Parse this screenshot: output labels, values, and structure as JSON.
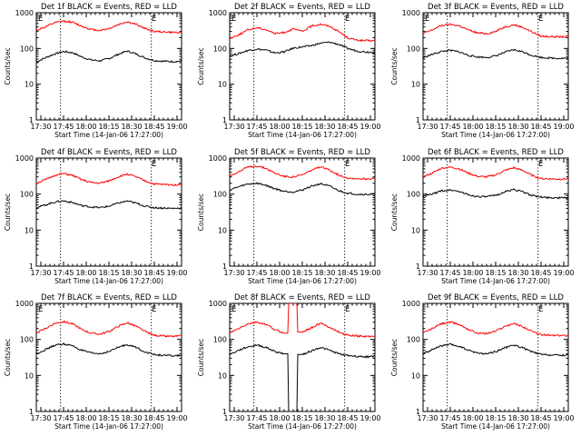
{
  "chart_data": [
    {
      "type": "line",
      "title": "Det 1f BLACK = Events, RED = LLD",
      "ylabel": "Counts/sec",
      "xlabel": "Start Time (14-Jan-06 17:27:00)",
      "x_ticks": [
        "17:30",
        "17:45",
        "18:00",
        "18:15",
        "18:30",
        "18:45",
        "19:00"
      ],
      "y_ticks": [
        "1",
        "10",
        "100",
        "1000"
      ],
      "ylim": [
        1,
        1000
      ],
      "y_scale": "log",
      "annotations": [
        "E",
        "E"
      ],
      "series": [
        {
          "color": "#000000",
          "values": [
            42,
            55,
            70,
            82,
            76,
            58,
            48,
            45,
            52,
            68,
            85,
            70,
            54,
            46,
            44,
            43,
            44
          ]
        },
        {
          "color": "#ff0000",
          "values": [
            320,
            400,
            520,
            580,
            540,
            420,
            340,
            320,
            360,
            460,
            560,
            470,
            360,
            300,
            290,
            280,
            285
          ]
        }
      ]
    },
    {
      "type": "line",
      "title": "Det 2f BLACK = Events, RED = LLD",
      "ylabel": "Counts/sec",
      "xlabel": "Start Time (14-Jan-06 17:27:00)",
      "x_ticks": [
        "17:30",
        "17:45",
        "18:00",
        "18:15",
        "18:30",
        "18:45",
        "19:00"
      ],
      "y_ticks": [
        "1",
        "10",
        "100",
        "1000"
      ],
      "ylim": [
        1,
        1000
      ],
      "y_scale": "log",
      "annotations": [
        "E",
        "E"
      ],
      "series": [
        {
          "color": "#000000",
          "values": [
            62,
            72,
            88,
            96,
            90,
            75,
            80,
            102,
            110,
            120,
            140,
            150,
            130,
            100,
            85,
            80,
            78
          ]
        },
        {
          "color": "#ff0000",
          "values": [
            190,
            240,
            330,
            380,
            340,
            260,
            280,
            350,
            300,
            420,
            480,
            420,
            300,
            200,
            170,
            165,
            165
          ]
        }
      ]
    },
    {
      "type": "line",
      "title": "Det 3f BLACK = Events, RED = LLD",
      "ylabel": "Counts/sec",
      "xlabel": "Start Time (14-Jan-06 17:27:00)",
      "x_ticks": [
        "17:30",
        "17:45",
        "18:00",
        "18:15",
        "18:30",
        "18:45",
        "19:00"
      ],
      "y_ticks": [
        "1",
        "10",
        "100",
        "1000"
      ],
      "ylim": [
        1,
        1000
      ],
      "y_scale": "log",
      "annotations": [
        "E",
        "E"
      ],
      "series": [
        {
          "color": "#000000",
          "values": [
            55,
            68,
            82,
            88,
            80,
            64,
            58,
            56,
            62,
            78,
            92,
            80,
            64,
            56,
            54,
            53,
            54
          ]
        },
        {
          "color": "#ff0000",
          "values": [
            260,
            330,
            440,
            470,
            430,
            330,
            270,
            260,
            300,
            400,
            460,
            390,
            290,
            220,
            215,
            210,
            215
          ]
        }
      ]
    },
    {
      "type": "line",
      "title": "Det 4f BLACK = Events, RED = LLD",
      "ylabel": "Counts/sec",
      "xlabel": "Start Time (14-Jan-06 17:27:00)",
      "x_ticks": [
        "17:30",
        "17:45",
        "18:00",
        "18:15",
        "18:30",
        "18:45",
        "19:00"
      ],
      "y_ticks": [
        "1",
        "10",
        "100",
        "1000"
      ],
      "ylim": [
        1,
        1000
      ],
      "y_scale": "log",
      "annotations": [
        "E"
      ],
      "series": [
        {
          "color": "#000000",
          "values": [
            42,
            50,
            60,
            65,
            58,
            48,
            44,
            42,
            46,
            56,
            64,
            56,
            46,
            42,
            41,
            40,
            41
          ]
        },
        {
          "color": "#ff0000",
          "values": [
            200,
            250,
            330,
            370,
            330,
            250,
            210,
            200,
            230,
            300,
            360,
            300,
            230,
            190,
            185,
            180,
            185
          ]
        }
      ]
    },
    {
      "type": "line",
      "title": "Det 5f BLACK = Events, RED = LLD",
      "ylabel": "Counts/sec",
      "xlabel": "Start Time (14-Jan-06 17:27:00)",
      "x_ticks": [
        "17:30",
        "17:45",
        "18:00",
        "18:15",
        "18:30",
        "18:45",
        "19:00"
      ],
      "y_ticks": [
        "1",
        "10",
        "100",
        "1000"
      ],
      "ylim": [
        1,
        1000
      ],
      "y_scale": "log",
      "annotations": [
        "E"
      ],
      "series": [
        {
          "color": "#000000",
          "values": [
            130,
            160,
            190,
            200,
            175,
            140,
            120,
            115,
            130,
            165,
            195,
            165,
            125,
            105,
            100,
            98,
            100
          ]
        },
        {
          "color": "#ff0000",
          "values": [
            320,
            420,
            560,
            600,
            520,
            380,
            310,
            300,
            340,
            460,
            560,
            470,
            340,
            280,
            270,
            265,
            270
          ]
        }
      ]
    },
    {
      "type": "line",
      "title": "Det 6f BLACK = Events, RED = LLD",
      "ylabel": "Counts/sec",
      "xlabel": "Start Time (14-Jan-06 17:27:00)",
      "x_ticks": [
        "17:30",
        "17:45",
        "18:00",
        "18:15",
        "18:30",
        "18:45",
        "19:00"
      ],
      "y_ticks": [
        "1",
        "10",
        "100",
        "1000"
      ],
      "ylim": [
        1,
        1000
      ],
      "y_scale": "log",
      "annotations": [
        "E"
      ],
      "series": [
        {
          "color": "#000000",
          "values": [
            85,
            100,
            122,
            130,
            118,
            95,
            86,
            84,
            92,
            115,
            135,
            115,
            92,
            82,
            80,
            78,
            80
          ]
        },
        {
          "color": "#ff0000",
          "values": [
            300,
            380,
            520,
            560,
            500,
            380,
            310,
            300,
            340,
            450,
            540,
            450,
            330,
            270,
            265,
            260,
            265
          ]
        }
      ]
    },
    {
      "type": "line",
      "title": "Det 7f BLACK = Events, RED = LLD",
      "ylabel": "Counts/sec",
      "xlabel": "Start Time (14-Jan-06 17:27:00)",
      "x_ticks": [
        "17:30",
        "17:45",
        "18:00",
        "18:15",
        "18:30",
        "18:45",
        "19:00"
      ],
      "y_ticks": [
        "1",
        "10",
        "100",
        "1000"
      ],
      "ylim": [
        1,
        1000
      ],
      "y_scale": "log",
      "annotations": [
        "E",
        "E"
      ],
      "series": [
        {
          "color": "#000000",
          "values": [
            40,
            52,
            68,
            75,
            66,
            50,
            42,
            40,
            46,
            60,
            72,
            60,
            45,
            38,
            36,
            35,
            36
          ]
        },
        {
          "color": "#ff0000",
          "values": [
            150,
            200,
            280,
            310,
            270,
            190,
            150,
            140,
            165,
            230,
            290,
            230,
            165,
            130,
            125,
            120,
            125
          ]
        }
      ]
    },
    {
      "type": "line",
      "title": "Det 8f BLACK = Events, RED = LLD",
      "ylabel": "Counts/sec",
      "xlabel": "Start Time (14-Jan-06 17:27:00)",
      "x_ticks": [
        "17:30",
        "17:45",
        "18:00",
        "18:15",
        "18:30",
        "18:45",
        "19:00"
      ],
      "y_ticks": [
        "1",
        "10",
        "100",
        "1000"
      ],
      "ylim": [
        1,
        1000
      ],
      "y_scale": "log",
      "annotations": [
        "E",
        "E"
      ],
      "series": [
        {
          "color": "#000000",
          "values": [
            38,
            50,
            62,
            70,
            60,
            46,
            40,
            1,
            38,
            48,
            60,
            50,
            40,
            36,
            34,
            33,
            34
          ]
        },
        {
          "color": "#ff0000",
          "values": [
            150,
            200,
            270,
            300,
            260,
            185,
            150,
            1000,
            160,
            210,
            280,
            220,
            160,
            130,
            125,
            120,
            125
          ]
        }
      ]
    },
    {
      "type": "line",
      "title": "Det 9f BLACK = Events, RED = LLD",
      "ylabel": "Counts/sec",
      "xlabel": "Start Time (14-Jan-06 17:27:00)",
      "x_ticks": [
        "17:30",
        "17:45",
        "18:00",
        "18:15",
        "18:30",
        "18:45",
        "19:00"
      ],
      "y_ticks": [
        "1",
        "10",
        "100",
        "1000"
      ],
      "ylim": [
        1,
        1000
      ],
      "y_scale": "log",
      "annotations": [
        "E"
      ],
      "series": [
        {
          "color": "#000000",
          "values": [
            40,
            52,
            66,
            72,
            64,
            50,
            42,
            40,
            46,
            58,
            70,
            58,
            45,
            38,
            37,
            36,
            37
          ]
        },
        {
          "color": "#ff0000",
          "values": [
            150,
            200,
            270,
            300,
            260,
            190,
            150,
            145,
            170,
            230,
            280,
            225,
            165,
            135,
            130,
            128,
            130
          ]
        }
      ]
    }
  ]
}
